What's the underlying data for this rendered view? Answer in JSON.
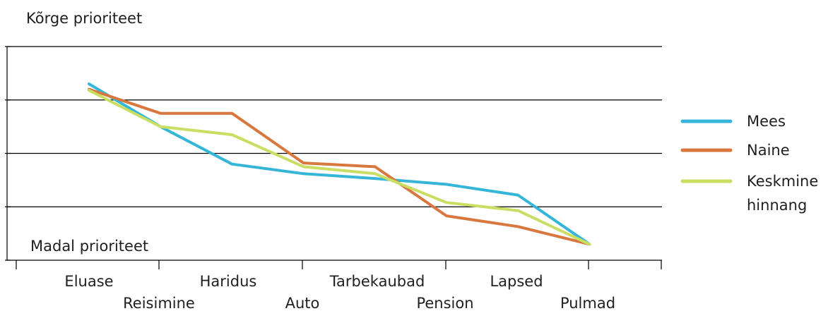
{
  "chart_data": {
    "type": "line",
    "y_top_label": "Kõrge prioriteet",
    "y_bottom_label": "Madal prioriteet",
    "categories": [
      "Eluase",
      "Reisimine",
      "Haridus",
      "Auto",
      "Tarbekaubad",
      "Pension",
      "Lapsed",
      "Pulmad"
    ],
    "ylim": [
      0,
      4
    ],
    "grid": true,
    "legend_position": "right",
    "series": [
      {
        "name": "Mees",
        "color": "#35b6d8",
        "values": [
          3.3,
          2.5,
          1.8,
          1.62,
          1.53,
          1.42,
          1.22,
          0.3
        ]
      },
      {
        "name": "Naine",
        "color": "#d8773e",
        "values": [
          3.2,
          2.75,
          2.75,
          1.82,
          1.75,
          0.83,
          0.63,
          0.3
        ]
      },
      {
        "name": "Keskmine\nhinnang",
        "color": "#c9de63",
        "values": [
          3.18,
          2.5,
          2.35,
          1.75,
          1.62,
          1.08,
          0.93,
          0.3
        ]
      }
    ]
  }
}
